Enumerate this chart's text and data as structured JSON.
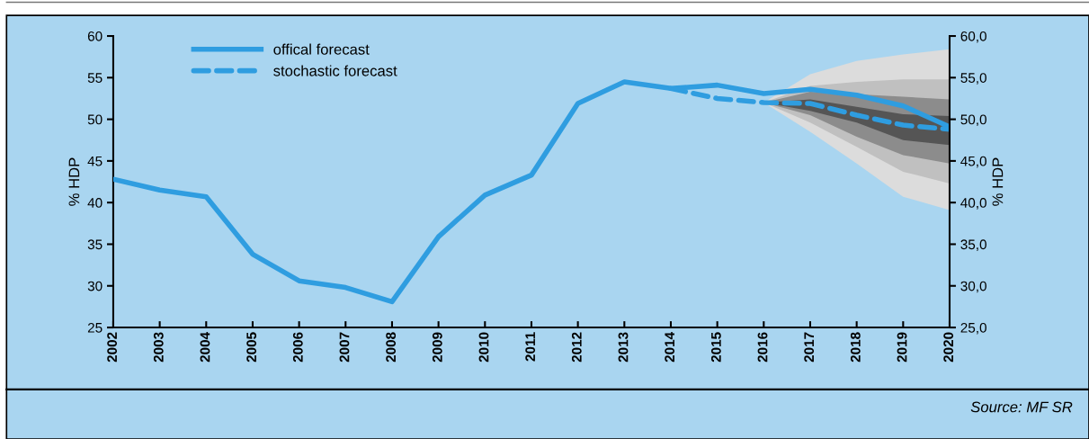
{
  "chart_data": {
    "type": "line",
    "ylabel": "% HDP",
    "y2label": "% HDP",
    "x": [
      2002,
      2003,
      2004,
      2005,
      2006,
      2007,
      2008,
      2009,
      2010,
      2011,
      2012,
      2013,
      2014,
      2015,
      2016,
      2017,
      2018,
      2019,
      2020
    ],
    "series": [
      {
        "color": "#dcdcdc",
        "x": [
          2016,
          2017,
          2018,
          2019,
          2020
        ],
        "values": [
          null,
          null,
          null,
          null,
          null
        ],
        "lower": [
          52.0,
          48.5,
          44.7,
          40.7,
          39.1
        ],
        "upper": [
          52.0,
          55.4,
          57.0,
          57.8,
          58.4
        ]
      },
      {
        "color": "#c0c0c0",
        "x": [
          2016,
          2017,
          2018,
          2019,
          2020
        ],
        "values": [
          null,
          null,
          null,
          null,
          null
        ],
        "lower": [
          52.0,
          49.6,
          46.7,
          43.7,
          42.3
        ],
        "upper": [
          52.0,
          54.0,
          54.5,
          54.8,
          54.8
        ]
      },
      {
        "color": "#8c8c8c",
        "x": [
          2016,
          2017,
          2018,
          2019,
          2020
        ],
        "values": [
          null,
          null,
          null,
          null,
          null
        ],
        "lower": [
          52.0,
          50.5,
          47.9,
          45.7,
          44.7
        ],
        "upper": [
          52.0,
          53.3,
          53.0,
          52.7,
          52.4
        ]
      },
      {
        "color": "#555555",
        "x": [
          2016,
          2017,
          2018,
          2019,
          2020
        ],
        "values": [
          null,
          null,
          null,
          null,
          null
        ],
        "lower": [
          52.0,
          51.0,
          49.6,
          47.5,
          46.9
        ],
        "upper": [
          52.0,
          52.4,
          51.5,
          50.6,
          50.4
        ]
      },
      {
        "name": "offical forecast",
        "color": "#2f9de0",
        "line_style": "solid",
        "values": [
          42.8,
          41.5,
          40.7,
          33.8,
          30.6,
          29.8,
          28.1,
          35.9,
          40.9,
          43.3,
          51.9,
          54.5,
          53.7,
          54.1,
          53.1,
          53.6,
          52.9,
          51.6,
          49.1
        ]
      },
      {
        "name": "stochastic forecast",
        "color": "#2f9de0",
        "line_style": "dashed",
        "x": [
          2014,
          2015,
          2016,
          2017,
          2018,
          2019,
          2020
        ],
        "values": [
          53.7,
          52.5,
          52.0,
          51.9,
          50.5,
          49.3,
          48.8
        ]
      }
    ],
    "xlim": [
      2002,
      2020
    ],
    "xticks": [
      2002,
      2003,
      2004,
      2005,
      2006,
      2007,
      2008,
      2009,
      2010,
      2011,
      2012,
      2013,
      2014,
      2015,
      2016,
      2017,
      2018,
      2019,
      2020
    ],
    "ylim": [
      25,
      60
    ],
    "yticks": [
      25,
      30,
      35,
      40,
      45,
      50,
      55,
      60
    ],
    "y2lim": [
      25,
      60
    ],
    "y2ticks": [
      {
        "value": 25,
        "label": "25,0"
      },
      {
        "value": 30,
        "label": "30,0"
      },
      {
        "value": 35,
        "label": "35,0"
      },
      {
        "value": 40,
        "label": "40,0"
      },
      {
        "value": 45,
        "label": "45,0"
      },
      {
        "value": 50,
        "label": "50,0"
      },
      {
        "value": 55,
        "label": "55,0"
      },
      {
        "value": 60,
        "label": "60,0"
      }
    ],
    "grid": false,
    "legend": "top left",
    "marker": "none",
    "annotations": [
      "Source: MF SR"
    ]
  }
}
